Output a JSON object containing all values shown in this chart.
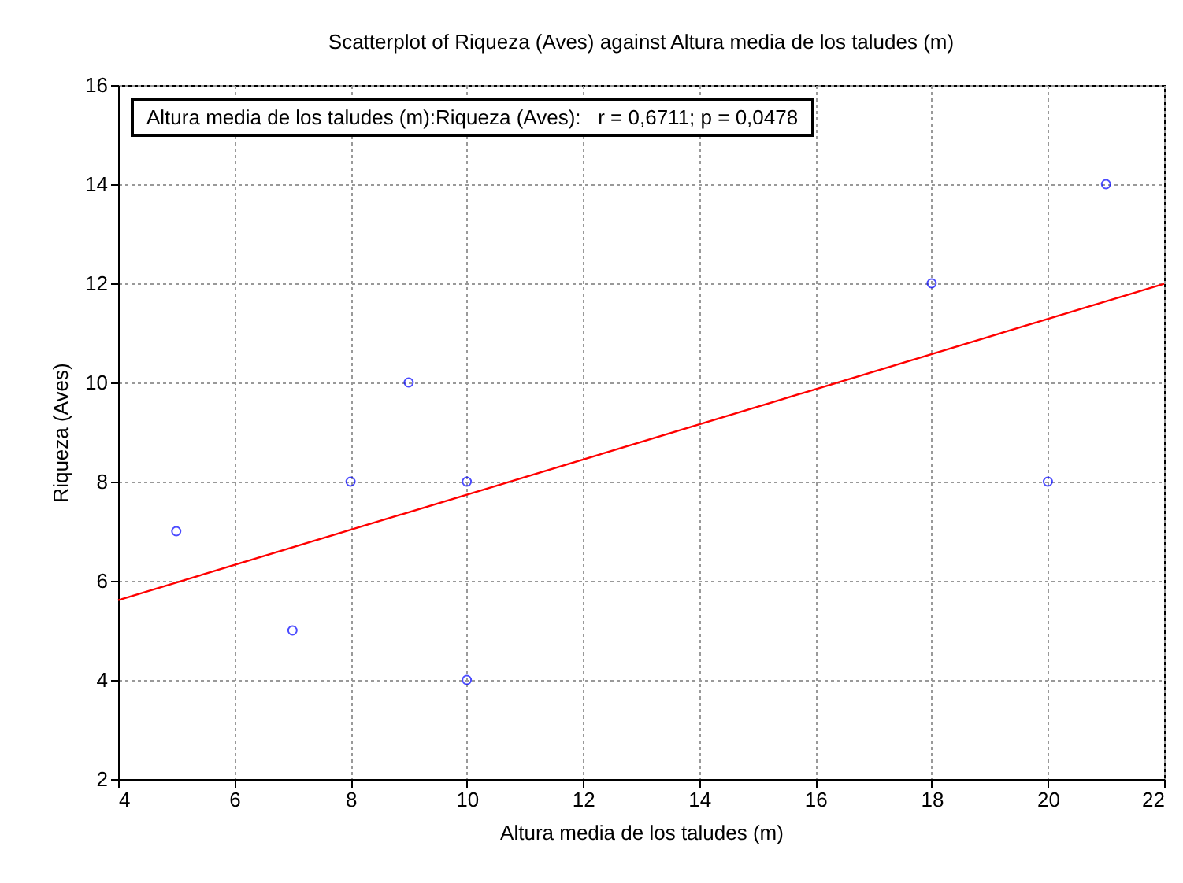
{
  "chart_data": {
    "type": "scatter",
    "title": "Scatterplot of Riqueza (Aves) against Altura media de los taludes (m)",
    "xlabel": "Altura media de los taludes (m)",
    "ylabel": "Riqueza (Aves)",
    "annotations": [
      "Altura media de los taludes (m):Riqueza (Aves):   r = 0,6711; p = 0,0478"
    ],
    "xlim": [
      4,
      22
    ],
    "xticks": [
      4,
      6,
      8,
      10,
      12,
      14,
      16,
      18,
      20,
      22
    ],
    "ylim": [
      2,
      16
    ],
    "yticks": [
      2,
      4,
      6,
      8,
      10,
      12,
      14,
      16
    ],
    "grid": true,
    "series": [
      {
        "marker": "circle",
        "color": "#0000ff",
        "x": [
          5,
          7,
          8,
          9,
          10,
          10,
          18,
          20,
          21
        ],
        "values": [
          7,
          5,
          8,
          10,
          8,
          4,
          12,
          8,
          14
        ]
      },
      {
        "type": "line",
        "color": "#ff0000",
        "line_style": "solid",
        "marker": "none",
        "x": [
          4,
          22
        ],
        "values": [
          5.61,
          11.99
        ]
      }
    ]
  }
}
